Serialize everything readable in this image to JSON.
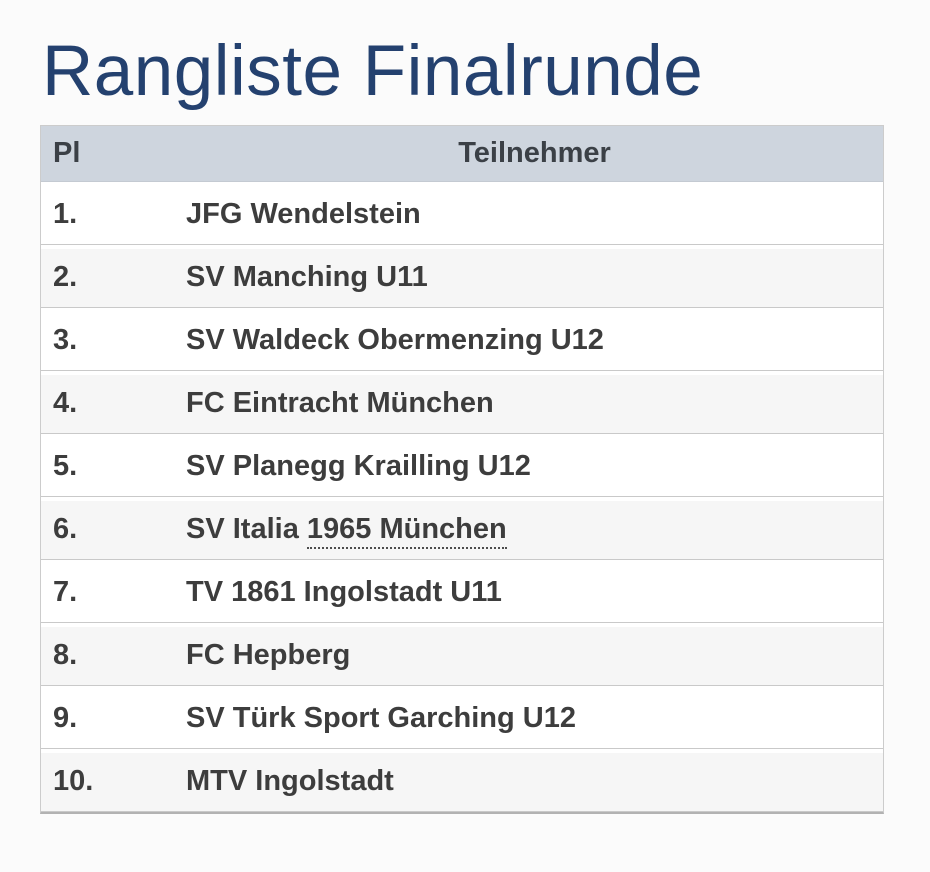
{
  "page": {
    "title": "Rangliste Finalrunde"
  },
  "colors": {
    "page_background": "#fbfbfb",
    "title_text": "#24416f",
    "header_background": "#ced5de",
    "header_text": "#3b4046",
    "row_text": "#3d3d3d",
    "row_background": "#ffffff",
    "row_alt_background": "#f6f6f6",
    "border": "#cccccc",
    "table_bottom_border": "#b2b2b2"
  },
  "table": {
    "headers": {
      "pl": "Pl",
      "teilnehmer": "Teilnehmer"
    },
    "rows": [
      {
        "pl": "1.",
        "teilnehmer": "JFG Wendelstein"
      },
      {
        "pl": "2.",
        "teilnehmer": "SV Manching U11"
      },
      {
        "pl": "3.",
        "teilnehmer": "SV Waldeck Obermenzing U12"
      },
      {
        "pl": "4.",
        "teilnehmer": "FC Eintracht München"
      },
      {
        "pl": "5.",
        "teilnehmer": "SV Planegg Krailling U12"
      },
      {
        "pl": "6.",
        "teilnehmer": "SV Italia 1965 München",
        "dotted_underline_text": "1965 München"
      },
      {
        "pl": "7.",
        "teilnehmer": "TV 1861 Ingolstadt U11"
      },
      {
        "pl": "8.",
        "teilnehmer": "FC Hepberg"
      },
      {
        "pl": "9.",
        "teilnehmer": "SV Türk Sport Garching U12"
      },
      {
        "pl": "10.",
        "teilnehmer": "MTV Ingolstadt"
      }
    ]
  }
}
